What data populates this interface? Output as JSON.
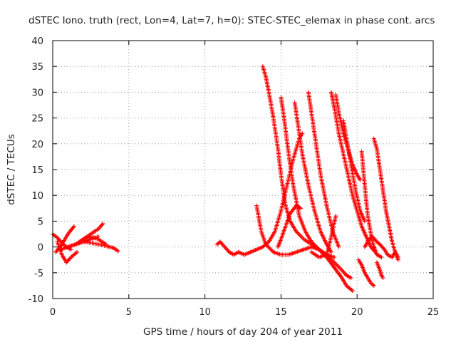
{
  "chart_data": {
    "type": "scatter",
    "title": "dSTEC Iono. truth (rect, Lon=4, Lat=7, h=0): STEC-STEC_elemax in phase cont. arcs",
    "xlabel": "GPS time / hours of day 204 of year 2011",
    "ylabel": "dSTEC  / TECUs",
    "xlim": [
      0,
      25
    ],
    "ylim": [
      -10,
      40
    ],
    "xticks": [
      "0",
      "5",
      "10",
      "15",
      "20",
      "25"
    ],
    "yticks": [
      "-10",
      "-5",
      "0",
      "5",
      "10",
      "15",
      "20",
      "25",
      "30",
      "35",
      "40"
    ],
    "grid": true,
    "marker": "+",
    "color": "#ff0000",
    "arcs": [
      {
        "x": [
          0.0,
          0.3,
          0.6,
          0.9,
          1.2
        ],
        "y": [
          2.5,
          1.8,
          0.8,
          0.0,
          -0.5
        ]
      },
      {
        "x": [
          0.2,
          0.6,
          1.0,
          1.4
        ],
        "y": [
          -1.0,
          0.5,
          2.5,
          4.0
        ]
      },
      {
        "x": [
          0.3,
          0.6,
          0.9,
          1.2,
          1.6
        ],
        "y": [
          1.0,
          -1.5,
          -3.0,
          -2.0,
          -1.0
        ]
      },
      {
        "x": [
          0.5,
          1.0,
          1.5,
          2.0,
          2.5,
          3.0
        ],
        "y": [
          -0.5,
          0.0,
          0.5,
          1.0,
          1.5,
          2.0
        ]
      },
      {
        "x": [
          1.0,
          1.5,
          2.0,
          2.5,
          3.0,
          3.3
        ],
        "y": [
          0.0,
          0.5,
          1.5,
          2.5,
          3.5,
          4.5
        ]
      },
      {
        "x": [
          1.5,
          2.0,
          2.5,
          3.0,
          3.5,
          4.0,
          4.3
        ],
        "y": [
          0.5,
          1.0,
          0.8,
          0.5,
          0.2,
          -0.2,
          -0.8
        ]
      },
      {
        "x": [
          2.0,
          2.5,
          3.0,
          3.5
        ],
        "y": [
          1.5,
          2.0,
          1.5,
          0.5
        ]
      },
      {
        "x": [
          10.8,
          11.0,
          11.3,
          11.6,
          11.9,
          12.2,
          12.6,
          13.0,
          13.4,
          13.8,
          14.2,
          14.6,
          15.0,
          15.4,
          15.8,
          16.2,
          16.4
        ],
        "y": [
          0.5,
          1.0,
          0.0,
          -1.0,
          -1.5,
          -1.0,
          -1.5,
          -1.0,
          -0.5,
          0.0,
          1.0,
          3.0,
          7.0,
          12.0,
          17.0,
          21.0,
          22.0
        ]
      },
      {
        "x": [
          13.4,
          13.7,
          14.0,
          14.5,
          15.0,
          15.5,
          16.0,
          16.5,
          17.0,
          17.5,
          18.0,
          18.5,
          19.0,
          19.3,
          19.6
        ],
        "y": [
          8.0,
          3.0,
          0.5,
          -1.0,
          -1.5,
          -1.5,
          -1.0,
          -0.5,
          0.0,
          -0.5,
          -1.5,
          -3.0,
          -4.5,
          -5.5,
          -6.0
        ]
      },
      {
        "x": [
          13.8,
          14.0,
          14.2,
          14.5,
          14.8,
          15.0,
          15.3,
          15.6,
          16.0,
          16.5,
          17.0,
          17.5,
          18.0,
          18.5,
          19.0,
          19.3,
          19.7
        ],
        "y": [
          35.0,
          33.0,
          30.0,
          25.0,
          19.0,
          14.0,
          8.0,
          5.0,
          3.0,
          1.5,
          0.5,
          -0.5,
          -2.0,
          -4.0,
          -6.0,
          -7.5,
          -8.5
        ]
      },
      {
        "x": [
          14.8,
          15.0,
          15.3,
          15.6,
          16.0,
          16.3
        ],
        "y": [
          0.0,
          1.5,
          4.0,
          6.5,
          8.0,
          7.5
        ]
      },
      {
        "x": [
          15.0,
          15.2,
          15.5,
          15.8,
          16.2,
          16.6,
          17.0,
          17.5,
          18.0,
          18.5
        ],
        "y": [
          29.0,
          25.0,
          18.0,
          12.0,
          6.0,
          3.0,
          1.0,
          -0.5,
          -1.5,
          -2.0
        ]
      },
      {
        "x": [
          15.9,
          16.1,
          16.4,
          16.8,
          17.2,
          17.6,
          18.0,
          18.3
        ],
        "y": [
          28.0,
          24.0,
          18.0,
          12.0,
          7.0,
          3.0,
          0.5,
          -1.0
        ]
      },
      {
        "x": [
          16.8,
          17.0,
          17.3,
          17.6,
          18.0,
          18.4,
          18.8
        ],
        "y": [
          30.0,
          26.0,
          20.0,
          14.0,
          8.0,
          3.0,
          0.0
        ]
      },
      {
        "x": [
          17.0,
          17.5,
          18.0,
          18.3,
          18.6
        ],
        "y": [
          -1.0,
          -2.0,
          -1.5,
          2.0,
          6.0
        ]
      },
      {
        "x": [
          18.3,
          18.5,
          18.8,
          19.1,
          19.4,
          19.7,
          20.0,
          20.3,
          20.6,
          20.9,
          21.2
        ],
        "y": [
          30.0,
          27.0,
          22.0,
          18.0,
          14.0,
          10.0,
          7.0,
          4.0,
          2.0,
          0.0,
          -1.0
        ]
      },
      {
        "x": [
          18.6,
          18.8,
          19.1,
          19.4,
          19.7,
          20.0,
          20.2
        ],
        "y": [
          29.5,
          26.0,
          22.0,
          19.0,
          16.0,
          14.0,
          13.0
        ]
      },
      {
        "x": [
          19.1,
          19.3,
          19.6,
          19.9,
          20.2,
          20.5
        ],
        "y": [
          24.5,
          21.0,
          16.0,
          11.0,
          7.0,
          5.0
        ]
      },
      {
        "x": [
          20.1,
          20.3,
          20.5,
          20.7,
          20.9,
          21.1
        ],
        "y": [
          -2.5,
          -3.5,
          -5.0,
          -6.0,
          -7.0,
          -7.5
        ]
      },
      {
        "x": [
          20.3,
          20.5,
          20.7,
          21.0,
          21.3,
          21.6
        ],
        "y": [
          18.5,
          12.0,
          6.0,
          1.0,
          -1.5,
          -2.0
        ]
      },
      {
        "x": [
          21.1,
          21.3,
          21.5,
          21.7,
          21.9,
          22.1,
          22.3,
          22.5,
          22.7
        ],
        "y": [
          21.0,
          19.0,
          15.0,
          11.0,
          7.0,
          4.0,
          1.0,
          -1.0,
          -2.5
        ]
      },
      {
        "x": [
          20.5,
          20.8,
          21.0,
          21.3,
          21.5,
          21.8,
          22.0,
          22.3,
          22.5,
          22.7
        ],
        "y": [
          0.0,
          1.5,
          2.0,
          1.0,
          0.5,
          -0.5,
          -1.5,
          -2.0,
          -1.0,
          -2.0
        ]
      },
      {
        "x": [
          21.3,
          21.5,
          21.6,
          21.7
        ],
        "y": [
          -3.0,
          -4.5,
          -5.5,
          -6.0
        ]
      }
    ]
  }
}
